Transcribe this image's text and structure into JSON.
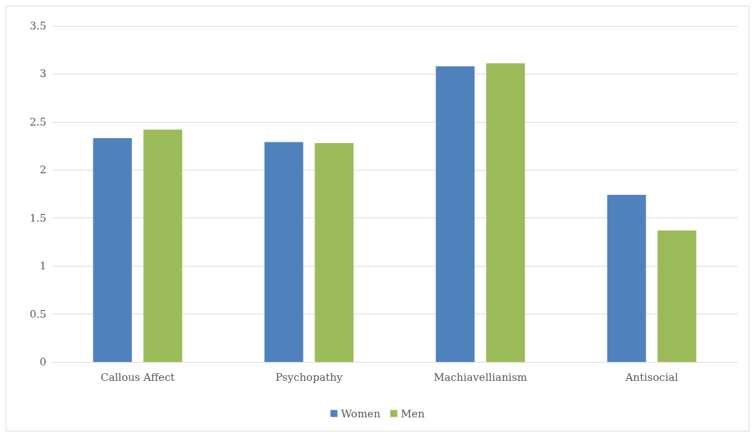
{
  "chart_data": {
    "type": "bar",
    "categories": [
      "Callous Affect",
      "Psychopathy",
      "Machiavellianism",
      "Antisocial"
    ],
    "series": [
      {
        "name": "Women",
        "color": "#4f81bd",
        "values": [
          2.33,
          2.29,
          3.08,
          1.74
        ]
      },
      {
        "name": "Men",
        "color": "#9bbb59",
        "values": [
          2.42,
          2.28,
          3.11,
          1.37
        ]
      }
    ],
    "ylim": [
      0,
      3.5
    ],
    "yticks": [
      0,
      0.5,
      1,
      1.5,
      2,
      2.5,
      3,
      3.5
    ],
    "grid": "y",
    "legend": "bottom"
  }
}
